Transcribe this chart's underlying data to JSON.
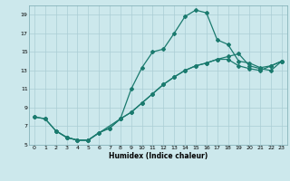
{
  "xlabel": "Humidex (Indice chaleur)",
  "bg_color": "#cce8ec",
  "line_color": "#1a7a6e",
  "grid_color": "#aacdd4",
  "xlim": [
    -0.5,
    23.5
  ],
  "ylim": [
    5,
    20
  ],
  "xticks": [
    0,
    1,
    2,
    3,
    4,
    5,
    6,
    7,
    8,
    9,
    10,
    11,
    12,
    13,
    14,
    15,
    16,
    17,
    18,
    19,
    20,
    21,
    22,
    23
  ],
  "yticks": [
    5,
    7,
    9,
    11,
    13,
    15,
    17,
    19
  ],
  "line1": {
    "x": [
      0,
      1,
      2,
      3,
      4,
      5,
      8,
      9,
      10,
      11,
      12,
      13,
      14,
      15,
      16,
      17,
      18,
      19,
      20,
      21,
      22,
      23
    ],
    "y": [
      8.0,
      7.8,
      6.5,
      5.8,
      5.5,
      5.5,
      7.8,
      11.0,
      13.3,
      15.0,
      15.3,
      17.0,
      18.8,
      19.5,
      19.2,
      16.3,
      15.8,
      14.0,
      13.8,
      13.3,
      13.5,
      14.0
    ]
  },
  "line2": {
    "x": [
      2,
      3,
      4,
      5,
      6,
      7,
      8,
      9,
      10,
      11,
      12,
      13,
      14,
      15,
      16,
      17,
      18,
      19,
      20,
      21,
      22,
      23
    ],
    "y": [
      6.5,
      5.8,
      5.5,
      5.5,
      6.3,
      6.8,
      7.8,
      8.5,
      9.5,
      10.5,
      11.5,
      12.3,
      13.0,
      13.5,
      13.8,
      14.2,
      14.5,
      14.8,
      13.5,
      13.2,
      13.0,
      14.0
    ]
  },
  "line3": {
    "x": [
      0,
      1,
      2,
      3,
      4,
      5,
      6,
      7,
      8,
      9,
      10,
      11,
      12,
      13,
      14,
      15,
      16,
      17,
      18,
      19,
      20,
      21,
      22,
      23
    ],
    "y": [
      8.0,
      7.8,
      6.5,
      5.8,
      5.5,
      5.5,
      6.3,
      6.8,
      7.8,
      8.5,
      9.5,
      10.5,
      11.5,
      12.3,
      13.0,
      13.5,
      13.8,
      14.2,
      14.2,
      13.5,
      13.2,
      13.0,
      13.5,
      14.0
    ]
  }
}
